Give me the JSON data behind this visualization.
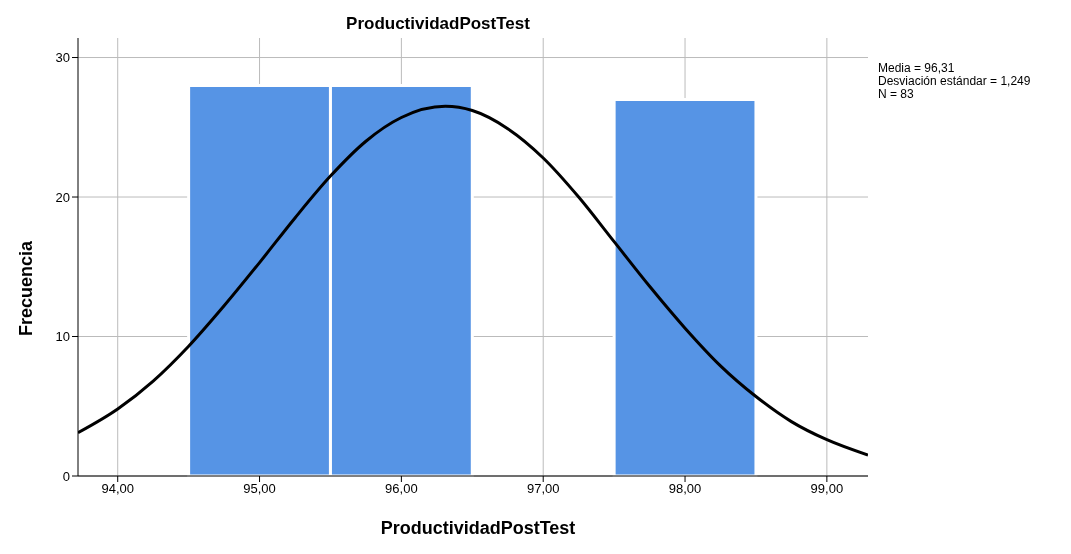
{
  "chart_data": {
    "type": "histogram",
    "title": "ProductividadPostTest",
    "xlabel": "ProductividadPostTest",
    "ylabel": "Frecuencia",
    "bins": [
      94.5,
      95.5,
      96.5,
      97.5,
      98.5
    ],
    "values": [
      28,
      28,
      0,
      27
    ],
    "color": "#5694e5",
    "series": [
      {
        "type": "line",
        "color": "#000000",
        "x": [
          93.72,
          94.0,
          94.25,
          94.5,
          94.75,
          95.0,
          95.25,
          95.5,
          95.75,
          96.0,
          96.31,
          96.5,
          96.75,
          97.0,
          97.25,
          97.5,
          97.75,
          98.0,
          98.25,
          98.5,
          98.75,
          99.0,
          99.29
        ],
        "values": [
          3.1,
          4.8,
          6.8,
          9.3,
          12.2,
          15.3,
          18.5,
          21.5,
          24.0,
          25.7,
          26.5,
          26.2,
          24.9,
          22.8,
          20.0,
          16.8,
          13.6,
          10.6,
          7.9,
          5.7,
          3.9,
          2.6,
          1.5
        ]
      }
    ],
    "xlim": [
      93.72,
      99.29
    ],
    "xticks": [
      {
        "value": 94,
        "label": "94,00"
      },
      {
        "value": 95,
        "label": "95,00"
      },
      {
        "value": 96,
        "label": "96,00"
      },
      {
        "value": 97,
        "label": "97,00"
      },
      {
        "value": 98,
        "label": "98,00"
      },
      {
        "value": 99,
        "label": "99,00"
      }
    ],
    "ylim": [
      0,
      31.4
    ],
    "yticks": [
      0,
      10,
      20,
      30
    ],
    "grid": true,
    "marker": "none",
    "annotations": [
      "Media = 96,31",
      "Desviación estándar = 1,249",
      "N = 83"
    ]
  }
}
